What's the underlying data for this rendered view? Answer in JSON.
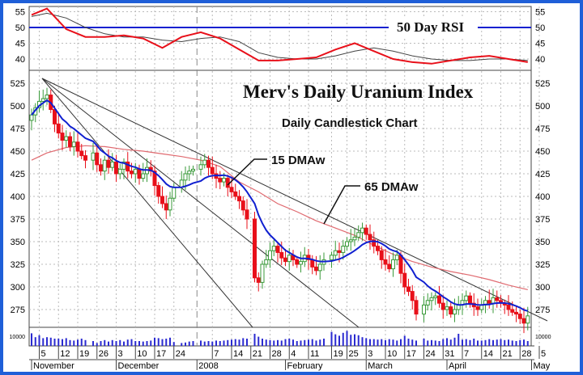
{
  "chart_data": {
    "type": "candlestick",
    "title": "Merv's Daily Uranium Index",
    "subtitle": "Daily Candlestick Chart",
    "rsi_panel": {
      "label": "50 Day RSI",
      "ticks": [
        55,
        50,
        45,
        40
      ],
      "reference_level": 50,
      "rsi_weekly": [
        54,
        56,
        49.5,
        47,
        47,
        47.5,
        46.5,
        43.5,
        47,
        48.5,
        46.5,
        43,
        39.5,
        39.5,
        40,
        40.5,
        43,
        45,
        42.5,
        40,
        39,
        38.5,
        39.5,
        40.5,
        41,
        40,
        39
      ],
      "signal_weekly": [
        53.5,
        54.5,
        53,
        50,
        48,
        47,
        47,
        46,
        45.5,
        46.5,
        47,
        45.5,
        42,
        40.5,
        40,
        40,
        41,
        42.5,
        43.5,
        42.5,
        41,
        40,
        39.5,
        39.5,
        40,
        40,
        39.5
      ],
      "colors": {
        "rsi": "#e8101a",
        "signal": "#444444",
        "reference": "#1020d0"
      }
    },
    "price_panel": {
      "yticks": [
        525,
        500,
        475,
        450,
        425,
        400,
        375,
        350,
        325,
        300,
        275
      ],
      "ylim": [
        255,
        538
      ],
      "annotations": {
        "ma15": "15 DMAw",
        "ma65": "65 DMAw"
      },
      "ma65_weekly": [
        440,
        448,
        454,
        456,
        455,
        452,
        450,
        447,
        444,
        440,
        433,
        416,
        405,
        392,
        383,
        373,
        365,
        357,
        346,
        336,
        328,
        322,
        317,
        313,
        308,
        302,
        297
      ],
      "colors": {
        "up": "#3a9a3a",
        "down": "#e8101a",
        "ma15": "#1020d0",
        "ma65": "#e06a70",
        "trendline": "#333333"
      },
      "weeks": [
        {
          "week_of": "2007-10-29",
          "closes": [
            null,
            null,
            null,
            490,
            498
          ],
          "volume": [
            null,
            null,
            null,
            13000,
            9000
          ]
        },
        {
          "week_of": "2007-11-05",
          "closes": [
            505,
            508,
            512,
            496,
            480
          ],
          "volume": [
            11000,
            8000,
            9000,
            8500,
            7500
          ]
        },
        {
          "week_of": "2007-11-12",
          "closes": [
            470,
            462,
            466,
            455,
            460
          ],
          "volume": [
            7500,
            7000,
            8000,
            6000,
            5500
          ]
        },
        {
          "week_of": "2007-11-19",
          "closes": [
            450,
            445,
            440,
            null,
            448
          ],
          "volume": [
            6500,
            7500,
            6000,
            null,
            5000
          ]
        },
        {
          "week_of": "2007-11-26",
          "closes": [
            435,
            428,
            440,
            432,
            438
          ],
          "volume": [
            3000,
            5000,
            6000,
            4500,
            6000
          ]
        },
        {
          "week_of": "2007-12-03",
          "closes": [
            425,
            430,
            438,
            428,
            425
          ],
          "volume": [
            5000,
            6000,
            4500,
            6500,
            7000
          ]
        },
        {
          "week_of": "2007-12-10",
          "closes": [
            430,
            420,
            425,
            432,
            428
          ],
          "volume": [
            5000,
            5000,
            4500,
            5000,
            5500
          ]
        },
        {
          "week_of": "2007-12-17",
          "closes": [
            412,
            400,
            392,
            385,
            398
          ],
          "volume": [
            8500,
            8000,
            7000,
            7500,
            8500
          ]
        },
        {
          "week_of": "2007-12-24",
          "closes": [
            410,
            null,
            418,
            425,
            428
          ],
          "volume": [
            4000,
            null,
            3000,
            3500,
            4500
          ]
        },
        {
          "week_of": "2007-12-31",
          "closes": [
            430,
            null,
            435,
            440,
            432
          ],
          "volume": [
            5000,
            null,
            5500,
            4500,
            5000
          ]
        },
        {
          "week_of": "2008-01-07",
          "closes": [
            425,
            420,
            416,
            420,
            410
          ],
          "volume": [
            4500,
            5500,
            5000,
            5500,
            6000
          ]
        },
        {
          "week_of": "2008-01-14",
          "closes": [
            405,
            400,
            395,
            385,
            375
          ],
          "volume": [
            6500,
            7000,
            6500,
            8000,
            7500
          ]
        },
        {
          "week_of": "2008-01-21",
          "closes": [
            null,
            310,
            305,
            325,
            330
          ],
          "volume": [
            null,
            12500,
            9500,
            7500,
            6500
          ]
        },
        {
          "week_of": "2008-01-28",
          "closes": [
            340,
            345,
            338,
            332,
            328
          ],
          "volume": [
            6000,
            5500,
            6000,
            5500,
            7000
          ]
        },
        {
          "week_of": "2008-02-04",
          "closes": [
            335,
            330,
            325,
            328,
            335
          ],
          "volume": [
            7500,
            6500,
            5000,
            5500,
            6000
          ]
        },
        {
          "week_of": "2008-02-11",
          "closes": [
            330,
            322,
            318,
            325,
            330
          ],
          "volume": [
            6500,
            7000,
            5500,
            6500,
            7500
          ]
        },
        {
          "week_of": "2008-02-18",
          "closes": [
            null,
            335,
            340,
            338,
            345
          ],
          "volume": [
            null,
            14500,
            12000,
            10500,
            13500
          ]
        },
        {
          "week_of": "2008-02-25",
          "closes": [
            350,
            352,
            355,
            360,
            365
          ],
          "volume": [
            15500,
            11500,
            12000,
            11000,
            9000
          ]
        },
        {
          "week_of": "2008-03-03",
          "closes": [
            358,
            352,
            345,
            340,
            330
          ],
          "volume": [
            8000,
            7000,
            7000,
            6500,
            7000
          ]
        },
        {
          "week_of": "2008-03-10",
          "closes": [
            325,
            320,
            330,
            335,
            315
          ],
          "volume": [
            6000,
            7000,
            6500,
            5500,
            7000
          ]
        },
        {
          "week_of": "2008-03-17",
          "closes": [
            300,
            295,
            285,
            270,
            null
          ],
          "volume": [
            10500,
            7500,
            6500,
            5500,
            null
          ]
        },
        {
          "week_of": "2008-03-24",
          "closes": [
            280,
            285,
            288,
            290,
            282
          ],
          "volume": [
            7500,
            5500,
            6000,
            5500,
            5000
          ]
        },
        {
          "week_of": "2008-03-31",
          "closes": [
            275,
            278,
            270,
            275,
            280
          ],
          "volume": [
            7000,
            8000,
            6500,
            8500,
            12500
          ]
        },
        {
          "week_of": "2008-04-07",
          "closes": [
            285,
            290,
            282,
            278,
            275
          ],
          "volume": [
            6500,
            7000,
            6000,
            7500,
            5500
          ]
        },
        {
          "week_of": "2008-04-14",
          "closes": [
            280,
            285,
            282,
            288,
            285
          ],
          "volume": [
            5500,
            6000,
            7000,
            6000,
            6500
          ]
        },
        {
          "week_of": "2008-04-21",
          "closes": [
            282,
            280,
            275,
            272,
            270
          ],
          "volume": [
            7000,
            6000,
            6500,
            5500,
            5000
          ]
        },
        {
          "week_of": "2008-04-28",
          "closes": [
            265,
            260,
            268,
            null,
            null
          ],
          "volume": [
            6000,
            6500,
            5000,
            null,
            null
          ]
        }
      ]
    },
    "volume_panel": {
      "ticks": [
        10000
      ],
      "color": "#2a2ad0"
    },
    "x_day_labels": [
      {
        "date": "2007-11-05",
        "label": "5"
      },
      {
        "date": "2007-11-12",
        "label": "12"
      },
      {
        "date": "2007-11-19",
        "label": "19"
      },
      {
        "date": "2007-11-26",
        "label": "26"
      },
      {
        "date": "2007-12-03",
        "label": "3"
      },
      {
        "date": "2007-12-10",
        "label": "10"
      },
      {
        "date": "2007-12-17",
        "label": "17"
      },
      {
        "date": "2007-12-24",
        "label": "24"
      },
      {
        "date": "2008-01-07",
        "label": "7"
      },
      {
        "date": "2008-01-14",
        "label": "14"
      },
      {
        "date": "2008-01-21",
        "label": "21"
      },
      {
        "date": "2008-01-28",
        "label": "28"
      },
      {
        "date": "2008-02-04",
        "label": "4"
      },
      {
        "date": "2008-02-11",
        "label": "11"
      },
      {
        "date": "2008-02-19",
        "label": "19"
      },
      {
        "date": "2008-02-25",
        "label": "25"
      },
      {
        "date": "2008-03-03",
        "label": "3"
      },
      {
        "date": "2008-03-10",
        "label": "10"
      },
      {
        "date": "2008-03-17",
        "label": "17"
      },
      {
        "date": "2008-03-24",
        "label": "24"
      },
      {
        "date": "2008-03-31",
        "label": "31"
      },
      {
        "date": "2008-04-07",
        "label": "7"
      },
      {
        "date": "2008-04-14",
        "label": "14"
      },
      {
        "date": "2008-04-21",
        "label": "21"
      },
      {
        "date": "2008-04-28",
        "label": "28"
      },
      {
        "date": "2008-05-05",
        "label": "5"
      }
    ],
    "x_month_labels": [
      {
        "date": "2007-11-01",
        "label": "November"
      },
      {
        "date": "2007-12-03",
        "label": "December"
      },
      {
        "date": "2008-01-01",
        "label": "2008"
      },
      {
        "date": "2008-02-01",
        "label": "February"
      },
      {
        "date": "2008-03-03",
        "label": "March"
      },
      {
        "date": "2008-04-01",
        "label": "April"
      },
      {
        "date": "2008-05-01",
        "label": "May"
      }
    ],
    "year_divider": "2008-01-01",
    "grid": true,
    "border_color": "#1f5fd8"
  }
}
